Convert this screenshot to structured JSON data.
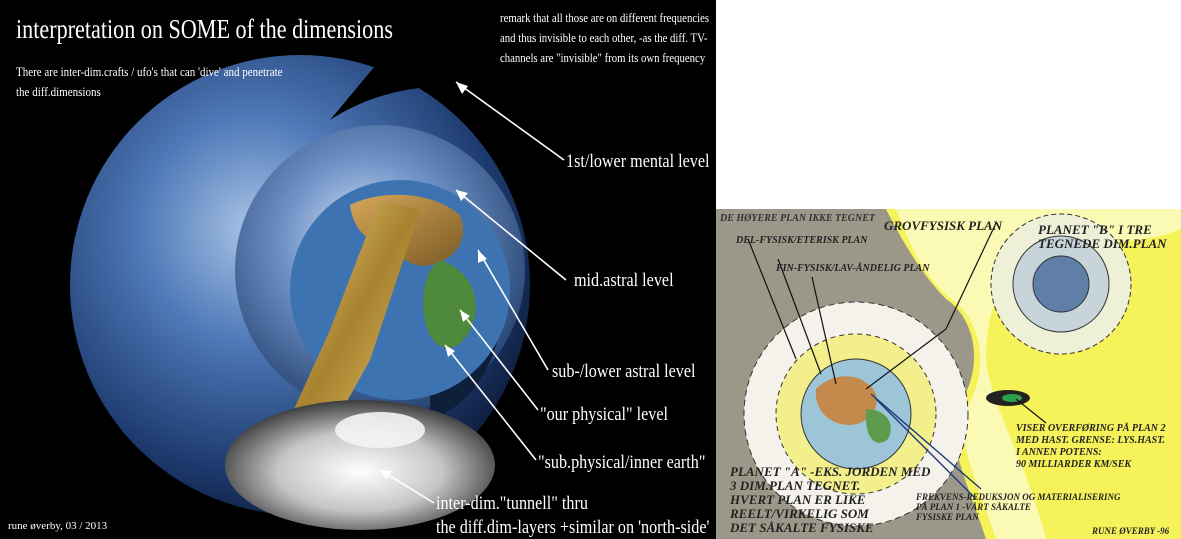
{
  "left_panel": {
    "title": "interpretation on SOME of the dimensions",
    "note_left": [
      "There are inter-dim.crafts / ufo's that can 'dive' and penetrate",
      "the diff.dimensions"
    ],
    "note_right": [
      "remark that all those are on different frequencies",
      "and thus invisible to each other, -as the diff. TV-",
      "channels are \"invisible\" from its own frequency"
    ],
    "levels": {
      "mental": "1st/lower mental level",
      "mid_astral": "mid.astral  level",
      "lower_astral": "sub-/lower astral level",
      "physical": "\"our physical\" level",
      "inner_earth": "\"sub.physical/inner earth\"",
      "tunnel_1": "inter-dim.\"tunnell\" thru",
      "tunnel_2": "the diff.dim-layers  +similar on 'north-side'"
    },
    "credit": "rune øverby, 03 / 2013"
  },
  "right_panel": {
    "top_left": "DE HØYERE PLAN IKKE TEGNET",
    "grovfysisk": "GROVFYSISK PLAN",
    "del_fysisk": "DEL-FYSISK/ETERISK PLAN",
    "fin_fysisk": "FIN-FYSISK/LAV-ÅNDELIG PLAN",
    "planet_b": [
      "PLANET \"B\" I TRE",
      "TEGNEDE DIM.PLAN"
    ],
    "overforing": [
      "VISER OVERFØRING PÅ PLAN 2",
      "MED HAST. GRENSE: LYS.HAST.",
      "I ANNEN POTENS:",
      "90 MILLIARDER KM/SEK"
    ],
    "planet_a": [
      "PLANET \"A\" -EKS. JORDEN MED",
      "3 DIM.PLAN TEGNET.",
      "HVERT PLAN ER LIKE",
      "REELT/VIRKELIG SOM",
      "DET SÅKALTE FYSISKE"
    ],
    "frekvens": [
      "FREKVENS-REDUKSJON OG MATERIALISERING",
      "PÅ PLAN 1 -VÅRT SÅKALTE",
      "FYSISKE PLAN"
    ],
    "signature": "RUNE ØVERBY -96"
  },
  "colors": {
    "left_bg": "#000000",
    "right_bg": "#f6f35a",
    "ocean": "#2a5aa8",
    "land": "#c89a52"
  }
}
